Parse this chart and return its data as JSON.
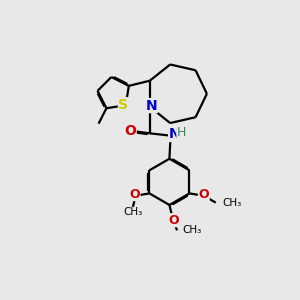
{
  "background_color": "#e8e8e8",
  "bond_color": "#000000",
  "N_color": "#0000cc",
  "S_color": "#cccc00",
  "O_color": "#cc0000",
  "H_color": "#2e8b57",
  "lw": 1.6,
  "doff": 0.045,
  "figsize": [
    3.0,
    3.0
  ],
  "dpi": 100,
  "xlim": [
    0,
    10
  ],
  "ylim": [
    0,
    10
  ]
}
